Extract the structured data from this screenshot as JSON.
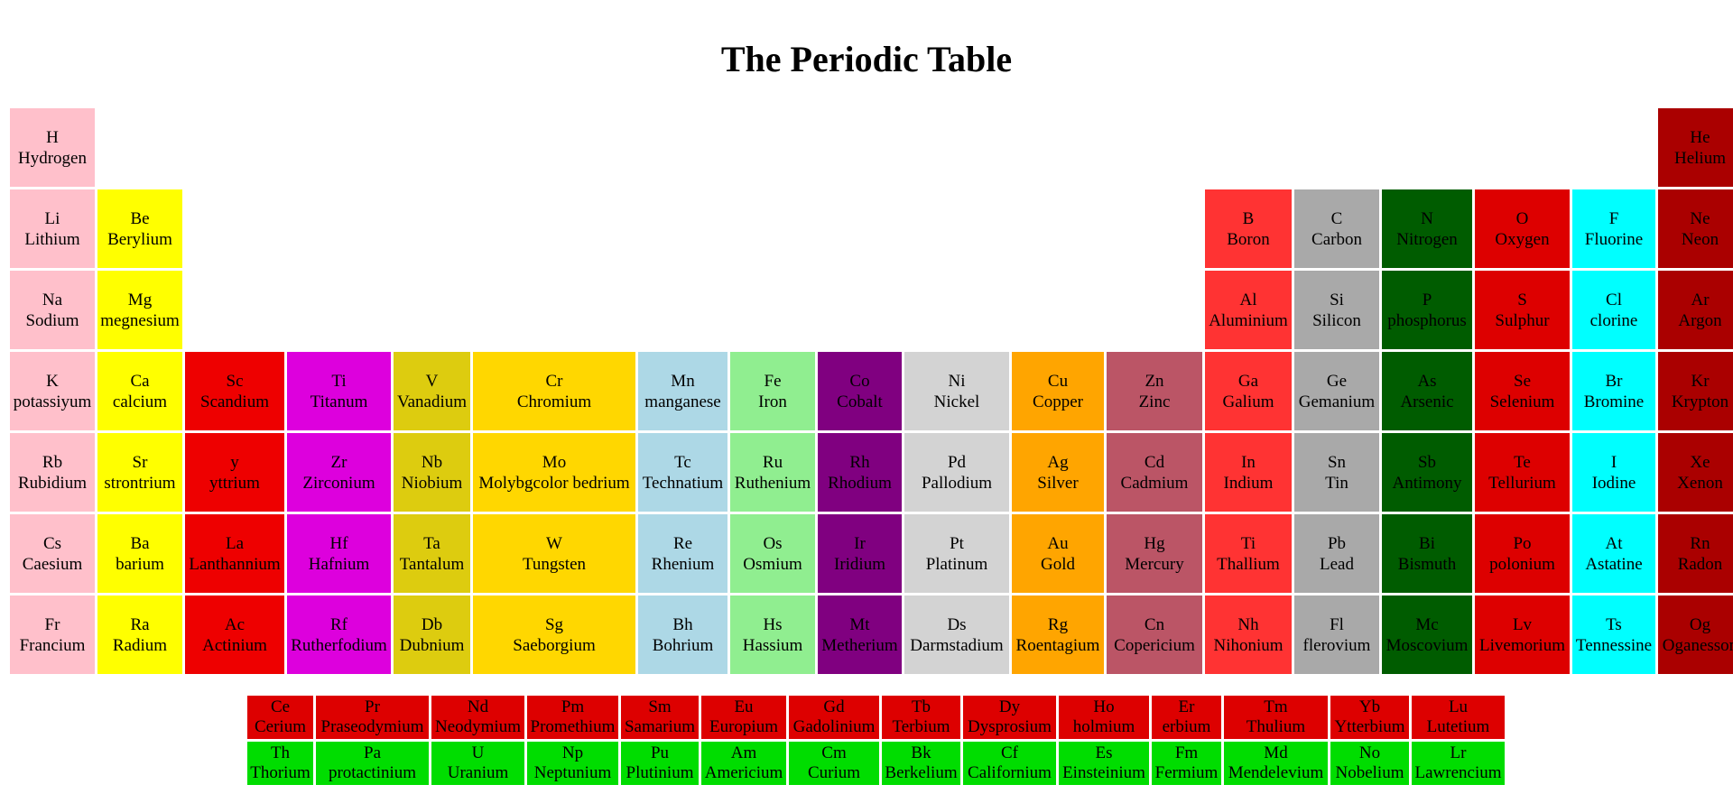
{
  "page": {
    "title": "The Periodic Table"
  },
  "colors": {
    "hydrogen": "#ffc0cb",
    "alkali": "#ffc0cb",
    "alkaline": "#ffff00",
    "group3": "#ee0000",
    "group4": "#dd00dd",
    "group5": "#ddcc0f",
    "group6": "#ffd700",
    "group7": "#add8e6",
    "group8": "#90ee90",
    "group9": "#800080",
    "group10": "#d3d3d3",
    "group11": "#ffa500",
    "group12": "#bb5566",
    "group13": "#ff3333",
    "group14": "#a9a9a9",
    "group15": "#005c00",
    "group16": "#dd0000",
    "group17": "#00ffff",
    "group18": "#aa0000",
    "lanthanide": "#dd0000",
    "actinide": "#00dd00"
  },
  "main_rows": [
    [
      {
        "col": 1,
        "symbol": "H",
        "name": "Hydrogen",
        "color": "hydrogen"
      },
      {
        "col": 18,
        "symbol": "He",
        "name": "Helium",
        "color": "group18"
      }
    ],
    [
      {
        "col": 1,
        "symbol": "Li",
        "name": "Lithium",
        "color": "alkali"
      },
      {
        "col": 2,
        "symbol": "Be",
        "name": "Berylium",
        "color": "alkaline"
      },
      {
        "col": 13,
        "symbol": "B",
        "name": "Boron",
        "color": "group13"
      },
      {
        "col": 14,
        "symbol": "C",
        "name": "Carbon",
        "color": "group14"
      },
      {
        "col": 15,
        "symbol": "N",
        "name": "Nitrogen",
        "color": "group15"
      },
      {
        "col": 16,
        "symbol": "O",
        "name": "Oxygen",
        "color": "group16"
      },
      {
        "col": 17,
        "symbol": "F",
        "name": "Fluorine",
        "color": "group17"
      },
      {
        "col": 18,
        "symbol": "Ne",
        "name": "Neon",
        "color": "group18"
      }
    ],
    [
      {
        "col": 1,
        "symbol": "Na",
        "name": "Sodium",
        "color": "alkali"
      },
      {
        "col": 2,
        "symbol": "Mg",
        "name": "megnesium",
        "color": "alkaline"
      },
      {
        "col": 13,
        "symbol": "Al",
        "name": "Aluminium",
        "color": "group13"
      },
      {
        "col": 14,
        "symbol": "Si",
        "name": "Silicon",
        "color": "group14"
      },
      {
        "col": 15,
        "symbol": "P",
        "name": "phosphorus",
        "color": "group15"
      },
      {
        "col": 16,
        "symbol": "S",
        "name": "Sulphur",
        "color": "group16"
      },
      {
        "col": 17,
        "symbol": "Cl",
        "name": "clorine",
        "color": "group17"
      },
      {
        "col": 18,
        "symbol": "Ar",
        "name": "Argon",
        "color": "group18"
      }
    ],
    [
      {
        "col": 1,
        "symbol": "K",
        "name": "potassiyum",
        "color": "alkali"
      },
      {
        "col": 2,
        "symbol": "Ca",
        "name": "calcium",
        "color": "alkaline"
      },
      {
        "col": 3,
        "symbol": "Sc",
        "name": "Scandium",
        "color": "group3"
      },
      {
        "col": 4,
        "symbol": "Ti",
        "name": "Titanum",
        "color": "group4"
      },
      {
        "col": 5,
        "symbol": "V",
        "name": "Vanadium",
        "color": "group5"
      },
      {
        "col": 6,
        "symbol": "Cr",
        "name": "Chromium",
        "color": "group6"
      },
      {
        "col": 7,
        "symbol": "Mn",
        "name": "manganese",
        "color": "group7"
      },
      {
        "col": 8,
        "symbol": "Fe",
        "name": "Iron",
        "color": "group8"
      },
      {
        "col": 9,
        "symbol": "Co",
        "name": "Cobalt",
        "color": "group9"
      },
      {
        "col": 10,
        "symbol": "Ni",
        "name": "Nickel",
        "color": "group10"
      },
      {
        "col": 11,
        "symbol": "Cu",
        "name": "Copper",
        "color": "group11"
      },
      {
        "col": 12,
        "symbol": "Zn",
        "name": "Zinc",
        "color": "group12"
      },
      {
        "col": 13,
        "symbol": "Ga",
        "name": "Galium",
        "color": "group13"
      },
      {
        "col": 14,
        "symbol": "Ge",
        "name": "Gemanium",
        "color": "group14"
      },
      {
        "col": 15,
        "symbol": "As",
        "name": "Arsenic",
        "color": "group15"
      },
      {
        "col": 16,
        "symbol": "Se",
        "name": "Selenium",
        "color": "group16"
      },
      {
        "col": 17,
        "symbol": "Br",
        "name": "Bromine",
        "color": "group17"
      },
      {
        "col": 18,
        "symbol": "Kr",
        "name": "Krypton",
        "color": "group18"
      }
    ],
    [
      {
        "col": 1,
        "symbol": "Rb",
        "name": "Rubidium",
        "color": "alkali"
      },
      {
        "col": 2,
        "symbol": "Sr",
        "name": "strontrium",
        "color": "alkaline"
      },
      {
        "col": 3,
        "symbol": "y",
        "name": "yttrium",
        "color": "group3"
      },
      {
        "col": 4,
        "symbol": "Zr",
        "name": "Zirconium",
        "color": "group4"
      },
      {
        "col": 5,
        "symbol": "Nb",
        "name": "Niobium",
        "color": "group5"
      },
      {
        "col": 6,
        "symbol": "Mo",
        "name": "Molybgcolor bedrium",
        "color": "group6"
      },
      {
        "col": 7,
        "symbol": "Tc",
        "name": "Technatium",
        "color": "group7"
      },
      {
        "col": 8,
        "symbol": "Ru",
        "name": "Ruthenium",
        "color": "group8"
      },
      {
        "col": 9,
        "symbol": "Rh",
        "name": "Rhodium",
        "color": "group9"
      },
      {
        "col": 10,
        "symbol": "Pd",
        "name": "Pallodium",
        "color": "group10"
      },
      {
        "col": 11,
        "symbol": "Ag",
        "name": "Silver",
        "color": "group11"
      },
      {
        "col": 12,
        "symbol": "Cd",
        "name": "Cadmium",
        "color": "group12"
      },
      {
        "col": 13,
        "symbol": "In",
        "name": "Indium",
        "color": "group13"
      },
      {
        "col": 14,
        "symbol": "Sn",
        "name": "Tin",
        "color": "group14"
      },
      {
        "col": 15,
        "symbol": "Sb",
        "name": "Antimony",
        "color": "group15"
      },
      {
        "col": 16,
        "symbol": "Te",
        "name": "Tellurium",
        "color": "group16"
      },
      {
        "col": 17,
        "symbol": "I",
        "name": "Iodine",
        "color": "group17"
      },
      {
        "col": 18,
        "symbol": "Xe",
        "name": "Xenon",
        "color": "group18"
      }
    ],
    [
      {
        "col": 1,
        "symbol": "Cs",
        "name": "Caesium",
        "color": "alkali"
      },
      {
        "col": 2,
        "symbol": "Ba",
        "name": "barium",
        "color": "alkaline"
      },
      {
        "col": 3,
        "symbol": "La",
        "name": "Lanthannium",
        "color": "group3"
      },
      {
        "col": 4,
        "symbol": "Hf",
        "name": "Hafnium",
        "color": "group4"
      },
      {
        "col": 5,
        "symbol": "Ta",
        "name": "Tantalum",
        "color": "group5"
      },
      {
        "col": 6,
        "symbol": "W",
        "name": "Tungsten",
        "color": "group6"
      },
      {
        "col": 7,
        "symbol": "Re",
        "name": "Rhenium",
        "color": "group7"
      },
      {
        "col": 8,
        "symbol": "Os",
        "name": "Osmium",
        "color": "group8"
      },
      {
        "col": 9,
        "symbol": "Ir",
        "name": "Iridium",
        "color": "group9"
      },
      {
        "col": 10,
        "symbol": "Pt",
        "name": "Platinum",
        "color": "group10"
      },
      {
        "col": 11,
        "symbol": "Au",
        "name": "Gold",
        "color": "group11"
      },
      {
        "col": 12,
        "symbol": "Hg",
        "name": "Mercury",
        "color": "group12"
      },
      {
        "col": 13,
        "symbol": "Ti",
        "name": "Thallium",
        "color": "group13"
      },
      {
        "col": 14,
        "symbol": "Pb",
        "name": "Lead",
        "color": "group14"
      },
      {
        "col": 15,
        "symbol": "Bi",
        "name": "Bismuth",
        "color": "group15"
      },
      {
        "col": 16,
        "symbol": "Po",
        "name": "polonium",
        "color": "group16"
      },
      {
        "col": 17,
        "symbol": "At",
        "name": "Astatine",
        "color": "group17"
      },
      {
        "col": 18,
        "symbol": "Rn",
        "name": "Radon",
        "color": "group18"
      }
    ],
    [
      {
        "col": 1,
        "symbol": "Fr",
        "name": "Francium",
        "color": "alkali"
      },
      {
        "col": 2,
        "symbol": "Ra",
        "name": "Radium",
        "color": "alkaline"
      },
      {
        "col": 3,
        "symbol": "Ac",
        "name": "Actinium",
        "color": "group3"
      },
      {
        "col": 4,
        "symbol": "Rf",
        "name": "Rutherfodium",
        "color": "group4"
      },
      {
        "col": 5,
        "symbol": "Db",
        "name": "Dubnium",
        "color": "group5"
      },
      {
        "col": 6,
        "symbol": "Sg",
        "name": "Saeborgium",
        "color": "group6"
      },
      {
        "col": 7,
        "symbol": "Bh",
        "name": "Bohrium",
        "color": "group7"
      },
      {
        "col": 8,
        "symbol": "Hs",
        "name": "Hassium",
        "color": "group8"
      },
      {
        "col": 9,
        "symbol": "Mt",
        "name": "Metherium",
        "color": "group9"
      },
      {
        "col": 10,
        "symbol": "Ds",
        "name": "Darmstadium",
        "color": "group10"
      },
      {
        "col": 11,
        "symbol": "Rg",
        "name": "Roentagium",
        "color": "group11"
      },
      {
        "col": 12,
        "symbol": "Cn",
        "name": "Copericium",
        "color": "group12"
      },
      {
        "col": 13,
        "symbol": "Nh",
        "name": "Nihonium",
        "color": "group13"
      },
      {
        "col": 14,
        "symbol": "Fl",
        "name": "flerovium",
        "color": "group14"
      },
      {
        "col": 15,
        "symbol": "Mc",
        "name": "Moscovium",
        "color": "group15"
      },
      {
        "col": 16,
        "symbol": "Lv",
        "name": "Livemorium",
        "color": "group16"
      },
      {
        "col": 17,
        "symbol": "Ts",
        "name": "Tennessine",
        "color": "group17"
      },
      {
        "col": 18,
        "symbol": "Og",
        "name": "Oganesson",
        "color": "group18"
      }
    ]
  ],
  "fblock_rows": [
    [
      {
        "symbol": "Ce",
        "name": "Cerium",
        "color": "lanthanide"
      },
      {
        "symbol": "Pr",
        "name": "Praseodymium",
        "color": "lanthanide"
      },
      {
        "symbol": "Nd",
        "name": "Neodymium",
        "color": "lanthanide"
      },
      {
        "symbol": "Pm",
        "name": "Promethium",
        "color": "lanthanide"
      },
      {
        "symbol": "Sm",
        "name": "Samarium",
        "color": "lanthanide"
      },
      {
        "symbol": "Eu",
        "name": "Europium",
        "color": "lanthanide"
      },
      {
        "symbol": "Gd",
        "name": "Gadolinium",
        "color": "lanthanide"
      },
      {
        "symbol": "Tb",
        "name": "Terbium",
        "color": "lanthanide"
      },
      {
        "symbol": "Dy",
        "name": "Dysprosium",
        "color": "lanthanide"
      },
      {
        "symbol": "Ho",
        "name": "holmium",
        "color": "lanthanide"
      },
      {
        "symbol": "Er",
        "name": "erbium",
        "color": "lanthanide"
      },
      {
        "symbol": "Tm",
        "name": "Thulium",
        "color": "lanthanide"
      },
      {
        "symbol": "Yb",
        "name": "Ytterbium",
        "color": "lanthanide"
      },
      {
        "symbol": "Lu",
        "name": "Lutetium",
        "color": "lanthanide"
      }
    ],
    [
      {
        "symbol": "Th",
        "name": "Thorium",
        "color": "actinide"
      },
      {
        "symbol": "Pa",
        "name": "protactinium",
        "color": "actinide"
      },
      {
        "symbol": "U",
        "name": "Uranium",
        "color": "actinide"
      },
      {
        "symbol": "Np",
        "name": "Neptunium",
        "color": "actinide"
      },
      {
        "symbol": "Pu",
        "name": "Plutinium",
        "color": "actinide"
      },
      {
        "symbol": "Am",
        "name": "Americium",
        "color": "actinide"
      },
      {
        "symbol": "Cm",
        "name": "Curium",
        "color": "actinide"
      },
      {
        "symbol": "Bk",
        "name": "Berkelium",
        "color": "actinide"
      },
      {
        "symbol": "Cf",
        "name": "Californium",
        "color": "actinide"
      },
      {
        "symbol": "Es",
        "name": "Einsteinium",
        "color": "actinide"
      },
      {
        "symbol": "Fm",
        "name": "Fermium",
        "color": "actinide"
      },
      {
        "symbol": "Md",
        "name": "Mendelevium",
        "color": "actinide"
      },
      {
        "symbol": "No",
        "name": "Nobelium",
        "color": "actinide"
      },
      {
        "symbol": "Lr",
        "name": "Lawrencium",
        "color": "actinide"
      }
    ]
  ]
}
